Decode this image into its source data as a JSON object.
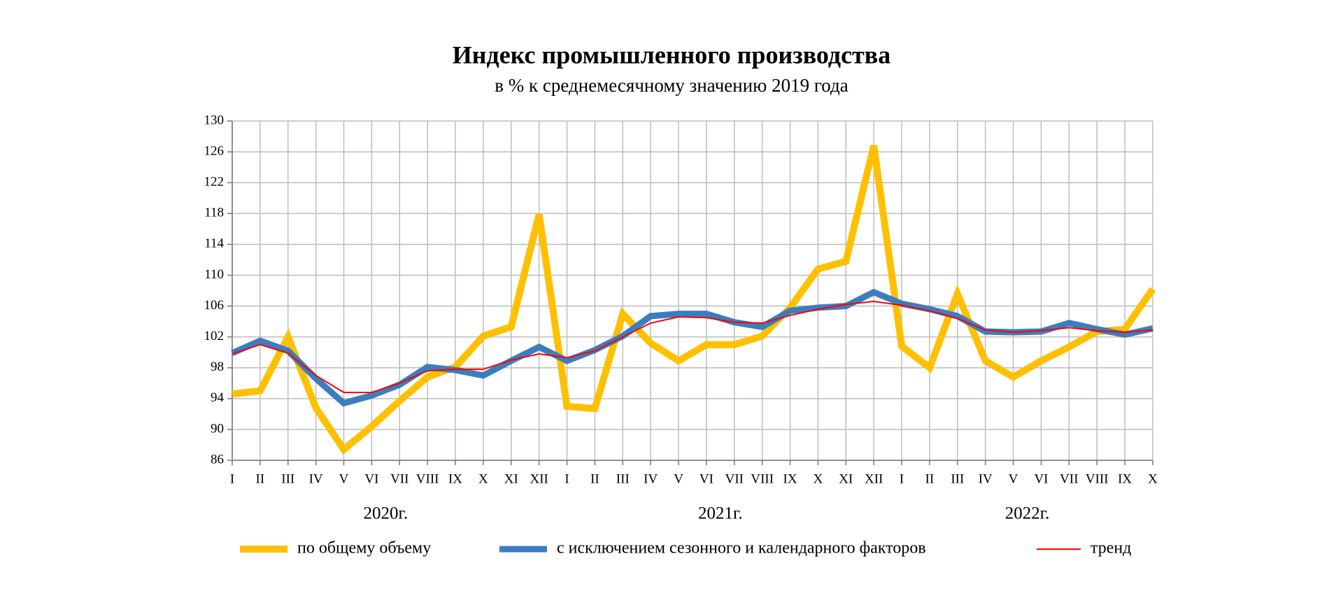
{
  "chart_data": {
    "type": "line",
    "title": "Индекс промышленного производства",
    "subtitle": "в % к среднемесячному значению 2019 года",
    "categories": [
      "I",
      "II",
      "III",
      "IV",
      "V",
      "VI",
      "VII",
      "VIII",
      "IX",
      "X",
      "XI",
      "XII",
      "I",
      "II",
      "III",
      "IV",
      "V",
      "VI",
      "VII",
      "VIII",
      "IX",
      "X",
      "XI",
      "XII",
      "I",
      "II",
      "III",
      "IV",
      "V",
      "VI",
      "VII",
      "VIII",
      "IX",
      "X"
    ],
    "category_groups": [
      "2020г.",
      "2021г.",
      "2022г."
    ],
    "series": [
      {
        "name": "по общему объему",
        "color": "#FFC000",
        "width": 10,
        "values": [
          94.6,
          95.0,
          102.0,
          92.8,
          87.4,
          90.4,
          93.7,
          96.8,
          98.1,
          102.1,
          103.3,
          117.9,
          93.0,
          92.7,
          105.0,
          101.2,
          98.9,
          101.0,
          101.0,
          102.1,
          105.8,
          110.8,
          111.8,
          126.8,
          100.8,
          98.0,
          107.6,
          98.9,
          96.8,
          98.9,
          100.7,
          102.7,
          103.0,
          108.2
        ]
      },
      {
        "name": "с исключением сезонного и календарного факторов",
        "color": "#3A7EBF",
        "width": 9,
        "values": [
          99.9,
          101.5,
          100.2,
          96.6,
          93.4,
          94.4,
          95.8,
          98.1,
          97.7,
          97.0,
          98.9,
          100.7,
          98.9,
          100.3,
          102.1,
          104.7,
          105.0,
          105.0,
          103.9,
          103.3,
          105.4,
          105.8,
          106.0,
          107.8,
          106.3,
          105.6,
          104.7,
          102.7,
          102.6,
          102.7,
          103.8,
          103.0,
          102.3,
          103.1
        ]
      },
      {
        "name": "тренд",
        "color": "#FF0000",
        "width": 2,
        "values": [
          99.8,
          101.0,
          99.9,
          97.0,
          94.8,
          94.8,
          96.0,
          97.6,
          97.8,
          97.8,
          99.0,
          99.8,
          99.3,
          100.2,
          102.0,
          103.8,
          104.6,
          104.5,
          103.9,
          103.8,
          104.8,
          105.6,
          106.2,
          106.6,
          106.1,
          105.4,
          104.4,
          102.9,
          102.6,
          102.8,
          103.2,
          102.8,
          102.6,
          102.9
        ]
      }
    ],
    "ylim": [
      86,
      130
    ],
    "yticks": [
      86,
      90,
      94,
      98,
      102,
      106,
      110,
      114,
      118,
      122,
      126,
      130
    ],
    "grid": true,
    "legend": "bottom"
  }
}
